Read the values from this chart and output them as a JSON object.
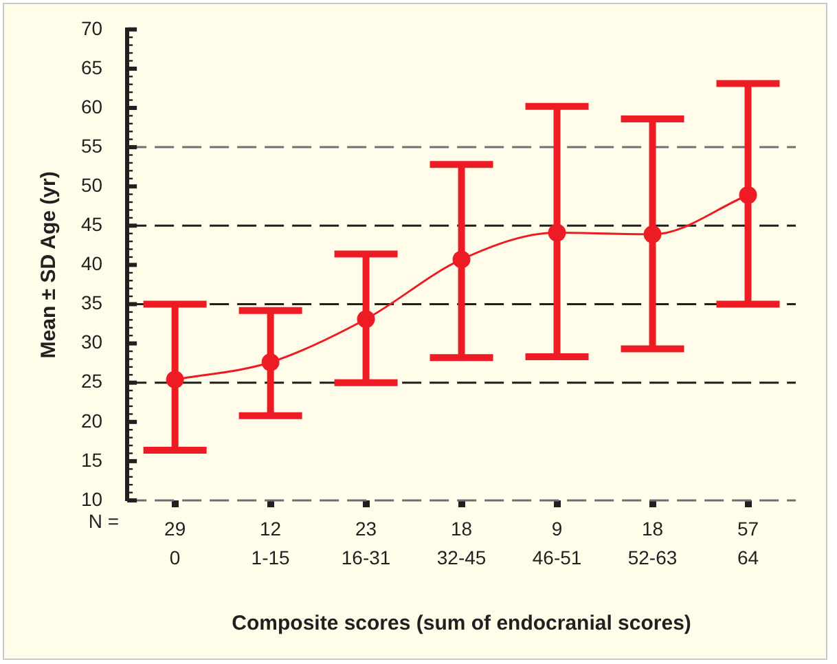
{
  "chart_data": {
    "type": "line",
    "xlabel": "Composite scores (sum of endocranial scores)",
    "ylabel": "Mean ± SD Age (yr)",
    "categories": [
      "29\n0",
      "12\n1-15",
      "23\n16-31",
      "18\n32-45",
      "9\n46-51",
      "18\n52-63",
      "57\n64"
    ],
    "series": [
      {
        "color": "#ed1c24",
        "values": [
          25.4,
          27.6,
          33.1,
          40.7,
          44.1,
          43.9,
          48.9
        ],
        "errors": [
          [
            16.4,
            35
          ],
          [
            20.8,
            34.2
          ],
          [
            25,
            41.4
          ],
          [
            28.2,
            52.8
          ],
          [
            28.3,
            60.2
          ],
          [
            29.3,
            58.6
          ],
          [
            35,
            63.1
          ]
        ]
      }
    ],
    "ylim": [
      10,
      70
    ],
    "yticks": [
      10,
      {
        "value": 11,
        "label": null
      },
      {
        "value": 12,
        "label": null
      },
      {
        "value": 13,
        "label": null
      },
      {
        "value": 14,
        "label": null
      },
      15,
      {
        "value": 16,
        "label": null
      },
      {
        "value": 17,
        "label": null
      },
      {
        "value": 18,
        "label": null
      },
      {
        "value": 19,
        "label": null
      },
      20,
      {
        "value": 21,
        "label": null
      },
      {
        "value": 22,
        "label": null
      },
      {
        "value": 23,
        "label": null
      },
      {
        "value": 24,
        "label": null
      },
      25,
      {
        "value": 26,
        "label": null
      },
      {
        "value": 27,
        "label": null
      },
      {
        "value": 28,
        "label": null
      },
      {
        "value": 29,
        "label": null
      },
      30,
      {
        "value": 31,
        "label": null
      },
      {
        "value": 32,
        "label": null
      },
      {
        "value": 33,
        "label": null
      },
      {
        "value": 34,
        "label": null
      },
      35,
      {
        "value": 36,
        "label": null
      },
      {
        "value": 37,
        "label": null
      },
      {
        "value": 38,
        "label": null
      },
      {
        "value": 39,
        "label": null
      },
      40,
      {
        "value": 41,
        "label": null
      },
      {
        "value": 42,
        "label": null
      },
      {
        "value": 43,
        "label": null
      },
      {
        "value": 44,
        "label": null
      },
      45,
      {
        "value": 46,
        "label": null
      },
      {
        "value": 47,
        "label": null
      },
      {
        "value": 48,
        "label": null
      },
      {
        "value": 49,
        "label": null
      },
      50,
      {
        "value": 51,
        "label": null
      },
      {
        "value": 52,
        "label": null
      },
      {
        "value": 53,
        "label": null
      },
      {
        "value": 54,
        "label": null
      },
      55,
      {
        "value": 56,
        "label": null
      },
      {
        "value": 57,
        "label": null
      },
      {
        "value": 58,
        "label": null
      },
      {
        "value": 59,
        "label": null
      },
      60,
      {
        "value": 61,
        "label": null
      },
      {
        "value": 62,
        "label": null
      },
      {
        "value": 63,
        "label": null
      },
      {
        "value": 64,
        "label": null
      },
      65,
      {
        "value": 66,
        "label": null
      },
      {
        "value": 67,
        "label": null
      },
      {
        "value": 68,
        "label": null
      },
      {
        "value": 69,
        "label": null
      },
      70
    ],
    "ref_lines": [
      {
        "axis": "y",
        "value": 10,
        "color": "#6d6e71",
        "line_style": "dashed"
      },
      {
        "axis": "y",
        "value": 25,
        "color": "#231f20",
        "line_style": "dashed"
      },
      {
        "axis": "y",
        "value": 35,
        "color": "#231f20",
        "line_style": "dashed"
      },
      {
        "axis": "y",
        "value": 45,
        "color": "#231f20",
        "line_style": "dashed"
      },
      {
        "axis": "y",
        "value": 55,
        "color": "#6d6e71",
        "line_style": "dashed"
      }
    ],
    "annotations": [
      "N ="
    ],
    "marker": "circle",
    "line_style": "solid",
    "legend": false
  }
}
